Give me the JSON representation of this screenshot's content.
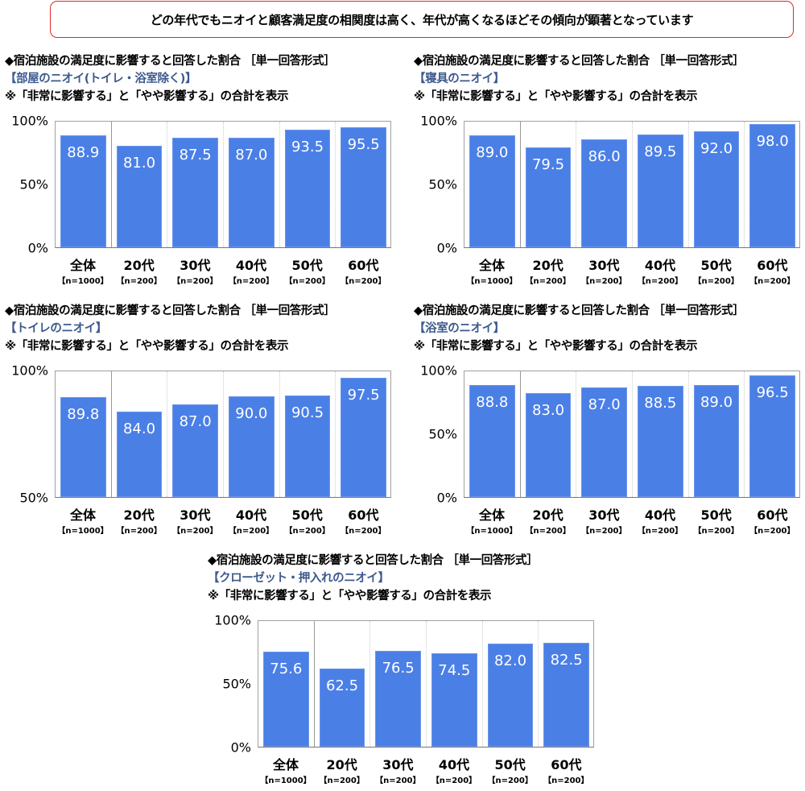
{
  "banner": "どの年代でもニオイと顧客満足度の相関度は高く、年代が高くなるほどその傾向が顕著となっています",
  "colors": {
    "bar": "#4a7fe6",
    "banner_border": "#e0282e",
    "subtitle": "#3d5a8e"
  },
  "chart_data": [
    {
      "type": "bar",
      "title": "◆宿泊施設の満足度に影響すると回答した割合 ［単一回答形式］",
      "subtitle": "【部屋のニオイ(トイレ・浴室除く)】",
      "note": "※「非常に影響する」と「やや影響する」の合計を表示",
      "categories": [
        "全体",
        "20代",
        "30代",
        "40代",
        "50代",
        "60代"
      ],
      "n_labels": [
        "【n=1000】",
        "【n=200】",
        "【n=200】",
        "【n=200】",
        "【n=200】",
        "【n=200】"
      ],
      "values": [
        88.9,
        81.0,
        87.5,
        87.0,
        93.5,
        95.5
      ],
      "value_labels": [
        "88.9",
        "81.0",
        "87.5",
        "87.0",
        "93.5",
        "95.5"
      ],
      "ylim": [
        0,
        100
      ],
      "yticks": [
        "0%",
        "50%",
        "100%"
      ]
    },
    {
      "type": "bar",
      "title": "◆宿泊施設の満足度に影響すると回答した割合 ［単一回答形式］",
      "subtitle": "【寝具のニオイ】",
      "note": "※「非常に影響する」と「やや影響する」の合計を表示",
      "categories": [
        "全体",
        "20代",
        "30代",
        "40代",
        "50代",
        "60代"
      ],
      "n_labels": [
        "【n=1000】",
        "【n=200】",
        "【n=200】",
        "【n=200】",
        "【n=200】",
        "【n=200】"
      ],
      "values": [
        89.0,
        79.5,
        86.0,
        89.5,
        92.0,
        98.0
      ],
      "value_labels": [
        "89.0",
        "79.5",
        "86.0",
        "89.5",
        "92.0",
        "98.0"
      ],
      "ylim": [
        0,
        100
      ],
      "yticks": [
        "0%",
        "50%",
        "100%"
      ]
    },
    {
      "type": "bar",
      "title": "◆宿泊施設の満足度に影響すると回答した割合 ［単一回答形式］",
      "subtitle": "【トイレのニオイ】",
      "note": "※「非常に影響する」と「やや影響する」の合計を表示",
      "categories": [
        "全体",
        "20代",
        "30代",
        "40代",
        "50代",
        "60代"
      ],
      "n_labels": [
        "【n=1000】",
        "【n=200】",
        "【n=200】",
        "【n=200】",
        "【n=200】",
        "【n=200】"
      ],
      "values": [
        89.8,
        84.0,
        87.0,
        90.0,
        90.5,
        97.5
      ],
      "value_labels": [
        "89.8",
        "84.0",
        "87.0",
        "90.0",
        "90.5",
        "97.5"
      ],
      "ylim": [
        50,
        100
      ],
      "yticks": [
        "50%",
        "100%"
      ]
    },
    {
      "type": "bar",
      "title": "◆宿泊施設の満足度に影響すると回答した割合 ［単一回答形式］",
      "subtitle": "【浴室のニオイ】",
      "note": "※「非常に影響する」と「やや影響する」の合計を表示",
      "categories": [
        "全体",
        "20代",
        "30代",
        "40代",
        "50代",
        "60代"
      ],
      "n_labels": [
        "【n=1000】",
        "【n=200】",
        "【n=200】",
        "【n=200】",
        "【n=200】",
        "【n=200】"
      ],
      "values": [
        88.8,
        83.0,
        87.0,
        88.5,
        89.0,
        96.5
      ],
      "value_labels": [
        "88.8",
        "83.0",
        "87.0",
        "88.5",
        "89.0",
        "96.5"
      ],
      "ylim": [
        0,
        100
      ],
      "yticks": [
        "0%",
        "50%",
        "100%"
      ]
    },
    {
      "type": "bar",
      "title": "◆宿泊施設の満足度に影響すると回答した割合 ［単一回答形式］",
      "subtitle": "【クローゼット・押入れのニオイ】",
      "note": "※「非常に影響する」と「やや影響する」の合計を表示",
      "categories": [
        "全体",
        "20代",
        "30代",
        "40代",
        "50代",
        "60代"
      ],
      "n_labels": [
        "【n=1000】",
        "【n=200】",
        "【n=200】",
        "【n=200】",
        "【n=200】",
        "【n=200】"
      ],
      "values": [
        75.6,
        62.5,
        76.5,
        74.5,
        82.0,
        82.5
      ],
      "value_labels": [
        "75.6",
        "62.5",
        "76.5",
        "74.5",
        "82.0",
        "82.5"
      ],
      "ylim": [
        0,
        100
      ],
      "yticks": [
        "0%",
        "50%",
        "100%"
      ]
    }
  ]
}
